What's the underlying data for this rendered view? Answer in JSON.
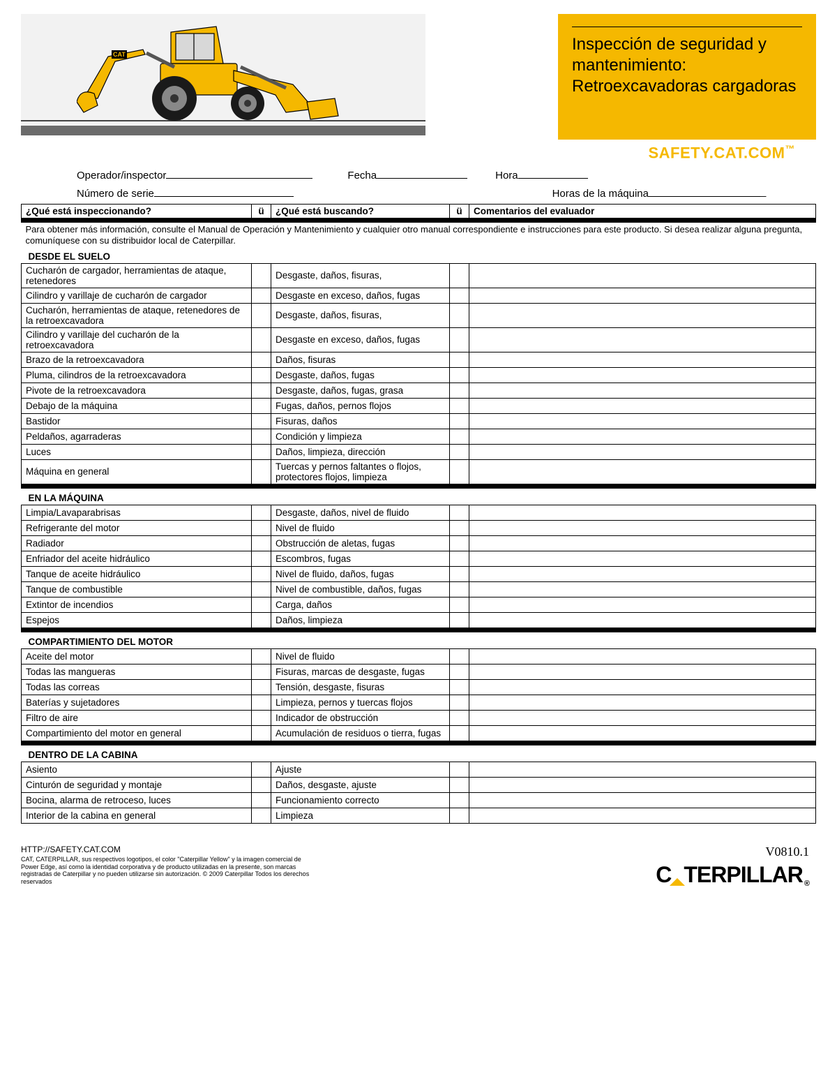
{
  "header": {
    "title": "Inspección de seguridad y mantenimiento: Retroexcavadoras cargadoras",
    "safety_url": "SAFETY.CAT.COM",
    "safety_tm": "™"
  },
  "fields": {
    "operator_label": "Operador/inspector",
    "date_label": "Fecha",
    "time_label": "Hora",
    "serial_label": "Número de serie",
    "hours_label": "Horas de la máquina"
  },
  "columns": {
    "inspect": "¿Qué está inspeccionando?",
    "chk": "ü",
    "look": "¿Qué está buscando?",
    "comment": "Comentarios del evaluador"
  },
  "intro": "Para obtener más información, consulte el Manual de Operación y Mantenimiento y cualquier otro manual correspondiente e instrucciones para este producto. Si desea realizar alguna pregunta, comuníquese con su distribuidor local de Caterpillar.",
  "sections": [
    {
      "title": "DESDE EL SUELO",
      "rows": [
        {
          "a": "Cucharón de cargador, herramientas de ataque, retenedores",
          "b": "Desgaste, daños, fisuras,"
        },
        {
          "a": "Cilindro y varillaje de cucharón de cargador",
          "b": "Desgaste en exceso, daños, fugas"
        },
        {
          "a": "Cucharón, herramientas de ataque, retenedores de la retroexcavadora",
          "b": "Desgaste, daños, fisuras,"
        },
        {
          "a": "Cilindro y varillaje del cucharón de la retroexcavadora",
          "b": "Desgaste en exceso, daños, fugas"
        },
        {
          "a": "Brazo de la retroexcavadora",
          "b": "Daños, fisuras"
        },
        {
          "a": "Pluma, cilindros de la retroexcavadora",
          "b": "Desgaste, daños, fugas"
        },
        {
          "a": "Pivote de la retroexcavadora",
          "b": "Desgaste, daños, fugas, grasa"
        },
        {
          "a": "Debajo de la máquina",
          "b": "Fugas, daños, pernos flojos"
        },
        {
          "a": "Bastidor",
          "b": "Fisuras, daños"
        },
        {
          "a": "Peldaños, agarraderas",
          "b": "Condición y limpieza"
        },
        {
          "a": "Luces",
          "b": "Daños, limpieza, dirección"
        },
        {
          "a": "Máquina en general",
          "b": "Tuercas y pernos faltantes o flojos, protectores flojos, limpieza"
        }
      ]
    },
    {
      "title": "EN LA MÁQUINA",
      "rows": [
        {
          "a": "Limpia/Lavaparabrisas",
          "b": "Desgaste, daños, nivel de fluido"
        },
        {
          "a": "Refrigerante del motor",
          "b": "Nivel de fluido"
        },
        {
          "a": "Radiador",
          "b": "Obstrucción de aletas, fugas"
        },
        {
          "a": "Enfriador del aceite hidráulico",
          "b": "Escombros, fugas"
        },
        {
          "a": "Tanque de aceite hidráulico",
          "b": "Nivel de fluido, daños, fugas"
        },
        {
          "a": "Tanque de combustible",
          "b": "Nivel de combustible, daños, fugas"
        },
        {
          "a": "Extintor de incendios",
          "b": "Carga, daños"
        },
        {
          "a": "Espejos",
          "b": "Daños, limpieza"
        }
      ]
    },
    {
      "title": "COMPARTIMIENTO DEL MOTOR",
      "rows": [
        {
          "a": "Aceite del motor",
          "b": "Nivel de fluido"
        },
        {
          "a": "Todas las mangueras",
          "b": "Fisuras, marcas de desgaste, fugas"
        },
        {
          "a": "Todas las correas",
          "b": "Tensión, desgaste, fisuras"
        },
        {
          "a": "Baterías y sujetadores",
          "b": "Limpieza, pernos y tuercas flojos"
        },
        {
          "a": "Filtro de aire",
          "b": "Indicador de obstrucción"
        },
        {
          "a": "Compartimiento del motor en general",
          "b": "Acumulación de residuos o tierra, fugas"
        }
      ]
    },
    {
      "title": "DENTRO DE LA CABINA",
      "rows": [
        {
          "a": "Asiento",
          "b": "Ajuste"
        },
        {
          "a": "Cinturón de seguridad y montaje",
          "b": "Daños, desgaste, ajuste"
        },
        {
          "a": "Bocina, alarma de retroceso, luces",
          "b": "Funcionamiento correcto"
        },
        {
          "a": "Interior de la cabina en general",
          "b": "Limpieza"
        }
      ]
    }
  ],
  "footer": {
    "url": "HTTP://SAFETY.CAT.COM",
    "legal": "CAT, CATERPILLAR, sus respectivos logotipos, el color \"Caterpillar Yellow\" y la imagen comercial de Power Edge, así como la identidad corporativa y de producto utilizadas en la presente, son marcas registradas de Caterpillar y no pueden utilizarse sin autorización. © 2009 Caterpillar Todos los derechos reservados",
    "version": "V0810.1",
    "logo_text": "CATERPILLAR",
    "logo_reg": "®"
  },
  "colors": {
    "cat_yellow": "#f5b800",
    "gray_bar": "#6b6b6b",
    "light_gray": "#f2f2f2"
  }
}
